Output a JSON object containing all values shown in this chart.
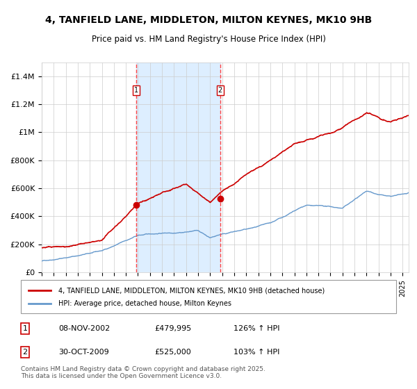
{
  "title": "4, TANFIELD LANE, MIDDLETON, MILTON KEYNES, MK10 9HB",
  "subtitle": "Price paid vs. HM Land Registry's House Price Index (HPI)",
  "background_color": "#ffffff",
  "plot_bg_color": "#ffffff",
  "grid_color": "#cccccc",
  "x_start_year": 1995,
  "x_end_year": 2025,
  "ylim": [
    0,
    1500000
  ],
  "yticks": [
    0,
    200000,
    400000,
    600000,
    800000,
    1000000,
    1200000,
    1400000
  ],
  "ytick_labels": [
    "£0",
    "£200K",
    "£400K",
    "£600K",
    "£800K",
    "£1M",
    "£1.2M",
    "£1.4M"
  ],
  "transaction1": {
    "date_num": 2002.86,
    "price": 479995,
    "label": "1",
    "date_str": "08-NOV-2002",
    "price_str": "£479,995",
    "hpi_str": "126% ↑ HPI"
  },
  "transaction2": {
    "date_num": 2009.83,
    "price": 525000,
    "label": "2",
    "date_str": "30-OCT-2009",
    "price_str": "£525,000",
    "hpi_str": "103% ↑ HPI"
  },
  "red_line_color": "#cc0000",
  "blue_line_color": "#6699cc",
  "shaded_region_color": "#ddeeff",
  "dashed_line_color": "#ff4444",
  "legend_label_red": "4, TANFIELD LANE, MIDDLETON, MILTON KEYNES, MK10 9HB (detached house)",
  "legend_label_blue": "HPI: Average price, detached house, Milton Keynes",
  "footnote": "Contains HM Land Registry data © Crown copyright and database right 2025.\nThis data is licensed under the Open Government Licence v3.0.",
  "table_rows": [
    [
      "1",
      "08-NOV-2002",
      "£479,995",
      "126% ↑ HPI"
    ],
    [
      "2",
      "30-OCT-2009",
      "£525,000",
      "103% ↑ HPI"
    ]
  ]
}
